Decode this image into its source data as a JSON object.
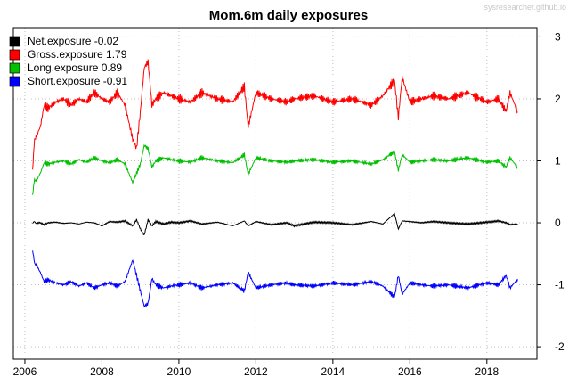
{
  "chart_data": {
    "type": "line",
    "title": "Mom.6m daily exposures",
    "watermark": "sysresearcher.github.io",
    "xlabel": "",
    "ylabel": "",
    "xlim": [
      2005.7,
      2019.3
    ],
    "ylim": [
      -2.2,
      3.15
    ],
    "x_ticks": [
      "2006",
      "2008",
      "2010",
      "2012",
      "2014",
      "2016",
      "2018"
    ],
    "y_ticks": [
      "3",
      "2",
      "1",
      "0",
      "-1",
      "-2"
    ],
    "y_axis_side": "right",
    "grid": "dotted",
    "legend_position": "top-left",
    "x": [
      2006.2,
      2006.25,
      2006.3,
      2006.4,
      2006.5,
      2006.6,
      2006.8,
      2007.0,
      2007.2,
      2007.4,
      2007.6,
      2007.8,
      2008.0,
      2008.2,
      2008.4,
      2008.6,
      2008.8,
      2008.9,
      2009.0,
      2009.1,
      2009.2,
      2009.3,
      2009.4,
      2009.6,
      2009.8,
      2010.0,
      2010.3,
      2010.6,
      2011.0,
      2011.4,
      2011.7,
      2011.8,
      2012.0,
      2012.4,
      2012.8,
      2013.0,
      2013.5,
      2014.0,
      2014.5,
      2015.0,
      2015.3,
      2015.6,
      2015.7,
      2015.8,
      2016.0,
      2016.3,
      2016.6,
      2017.0,
      2017.5,
      2018.0,
      2018.3,
      2018.5,
      2018.6,
      2018.8
    ],
    "series": [
      {
        "name": "Net.exposure -0.02",
        "color": "#000000",
        "values": [
          0.0,
          0.01,
          0.0,
          0.0,
          -0.03,
          0.0,
          0.01,
          -0.01,
          0.0,
          -0.02,
          0.01,
          0.0,
          -0.05,
          0.02,
          0.01,
          0.03,
          -0.05,
          0.05,
          -0.1,
          -0.2,
          0.05,
          -0.05,
          0.02,
          -0.02,
          0.01,
          0.0,
          0.03,
          -0.02,
          0.01,
          -0.05,
          0.03,
          -0.05,
          0.02,
          -0.03,
          0.0,
          -0.05,
          0.01,
          0.0,
          -0.03,
          0.02,
          -0.02,
          0.15,
          -0.1,
          0.03,
          0.02,
          0.0,
          0.02,
          0.0,
          -0.02,
          0.01,
          0.03,
          0.0,
          -0.03,
          -0.02
        ]
      },
      {
        "name": "Gross.exposure  1.79",
        "color": "#ff0000",
        "values": [
          0.85,
          1.35,
          1.4,
          1.55,
          1.9,
          1.85,
          1.95,
          2.0,
          1.9,
          2.0,
          1.95,
          2.1,
          2.0,
          1.95,
          2.1,
          1.9,
          1.35,
          1.2,
          1.8,
          2.5,
          2.6,
          1.9,
          2.0,
          2.1,
          2.05,
          2.0,
          1.95,
          2.1,
          2.0,
          1.95,
          2.2,
          1.55,
          2.1,
          2.0,
          1.95,
          2.0,
          2.05,
          1.95,
          2.0,
          1.9,
          2.05,
          2.3,
          1.7,
          2.35,
          1.95,
          2.0,
          2.05,
          2.0,
          2.1,
          1.95,
          2.0,
          1.8,
          2.1,
          1.79
        ]
      },
      {
        "name": "Long.exposure  0.89",
        "color": "#00c000",
        "values": [
          0.45,
          0.7,
          0.68,
          0.8,
          0.97,
          0.95,
          0.98,
          1.0,
          0.95,
          1.02,
          0.98,
          1.05,
          1.0,
          0.97,
          1.02,
          0.95,
          0.65,
          0.8,
          0.95,
          1.25,
          1.2,
          0.9,
          1.0,
          1.05,
          1.02,
          1.0,
          0.98,
          1.05,
          1.0,
          0.97,
          1.1,
          0.78,
          1.05,
          1.0,
          0.98,
          1.0,
          1.02,
          0.98,
          1.0,
          0.95,
          1.02,
          1.15,
          0.85,
          1.1,
          0.98,
          1.0,
          1.02,
          1.0,
          1.05,
          0.98,
          1.0,
          0.9,
          1.05,
          0.89
        ]
      },
      {
        "name": "Short.exposure -0.91",
        "color": "#0000ff",
        "values": [
          -0.45,
          -0.65,
          -0.68,
          -0.8,
          -0.95,
          -0.92,
          -0.97,
          -1.0,
          -0.95,
          -1.02,
          -0.97,
          -1.05,
          -1.0,
          -0.97,
          -1.02,
          -0.95,
          -0.6,
          -0.85,
          -1.1,
          -1.35,
          -1.3,
          -0.9,
          -1.0,
          -1.05,
          -1.02,
          -1.0,
          -0.97,
          -1.05,
          -1.0,
          -0.97,
          -1.1,
          -0.8,
          -1.05,
          -1.0,
          -0.97,
          -1.0,
          -1.02,
          -0.97,
          -1.0,
          -0.95,
          -1.02,
          -1.2,
          -0.85,
          -1.15,
          -0.97,
          -1.0,
          -1.02,
          -1.0,
          -1.05,
          -0.97,
          -1.0,
          -0.85,
          -1.05,
          -0.91
        ]
      }
    ]
  }
}
